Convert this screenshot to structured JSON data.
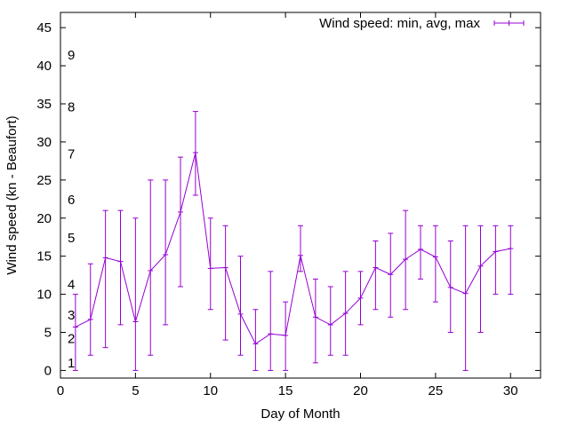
{
  "chart_data": {
    "type": "line",
    "xlabel": "Day of Month",
    "ylabel": "Wind speed (kn - Beaufort)",
    "xlim": [
      0,
      32
    ],
    "ylim": [
      -1,
      47
    ],
    "x_ticks": [
      0,
      5,
      10,
      15,
      20,
      25,
      30
    ],
    "y_ticks": [
      0,
      5,
      10,
      15,
      20,
      25,
      30,
      35,
      40,
      45
    ],
    "grid": false,
    "legend_position": "top-right",
    "beaufort_labels": [
      {
        "label": "1",
        "value": 1
      },
      {
        "label": "2",
        "value": 4.2
      },
      {
        "label": "3",
        "value": 7.3
      },
      {
        "label": "4",
        "value": 11.3
      },
      {
        "label": "5",
        "value": 17.4
      },
      {
        "label": "6",
        "value": 22.4
      },
      {
        "label": "7",
        "value": 28.4
      },
      {
        "label": "8",
        "value": 34.6
      },
      {
        "label": "9",
        "value": 41.4
      }
    ],
    "series": [
      {
        "name": "Wind speed: min, avg, max",
        "color": "#9400D3",
        "x": [
          1,
          2,
          3,
          4,
          5,
          6,
          7,
          8,
          9,
          10,
          11,
          12,
          13,
          14,
          15,
          16,
          17,
          18,
          19,
          20,
          21,
          22,
          23,
          24,
          25,
          26,
          27,
          28,
          29,
          30
        ],
        "min": [
          0,
          2,
          3,
          6,
          0,
          2,
          6,
          11,
          23,
          8,
          4,
          2,
          0,
          0,
          0,
          13,
          1,
          2,
          2,
          6,
          8,
          7,
          8,
          12,
          9,
          5,
          0,
          5,
          10,
          10
        ],
        "avg": [
          5.7,
          6.7,
          14.8,
          14.3,
          6.4,
          13.1,
          15.2,
          20.8,
          28.6,
          13.4,
          13.5,
          7.4,
          3.5,
          4.8,
          4.6,
          15.1,
          7,
          6,
          7.5,
          9.5,
          13.5,
          12.6,
          14.6,
          15.9,
          14.9,
          10.9,
          10.1,
          13.7,
          15.6,
          16
        ],
        "max": [
          10,
          14,
          21,
          21,
          20,
          25,
          25,
          28,
          34,
          20,
          19,
          15,
          8,
          13,
          9,
          19,
          12,
          11,
          13,
          13,
          17,
          18,
          21,
          19,
          19,
          17,
          19,
          19,
          19,
          19
        ]
      }
    ]
  }
}
